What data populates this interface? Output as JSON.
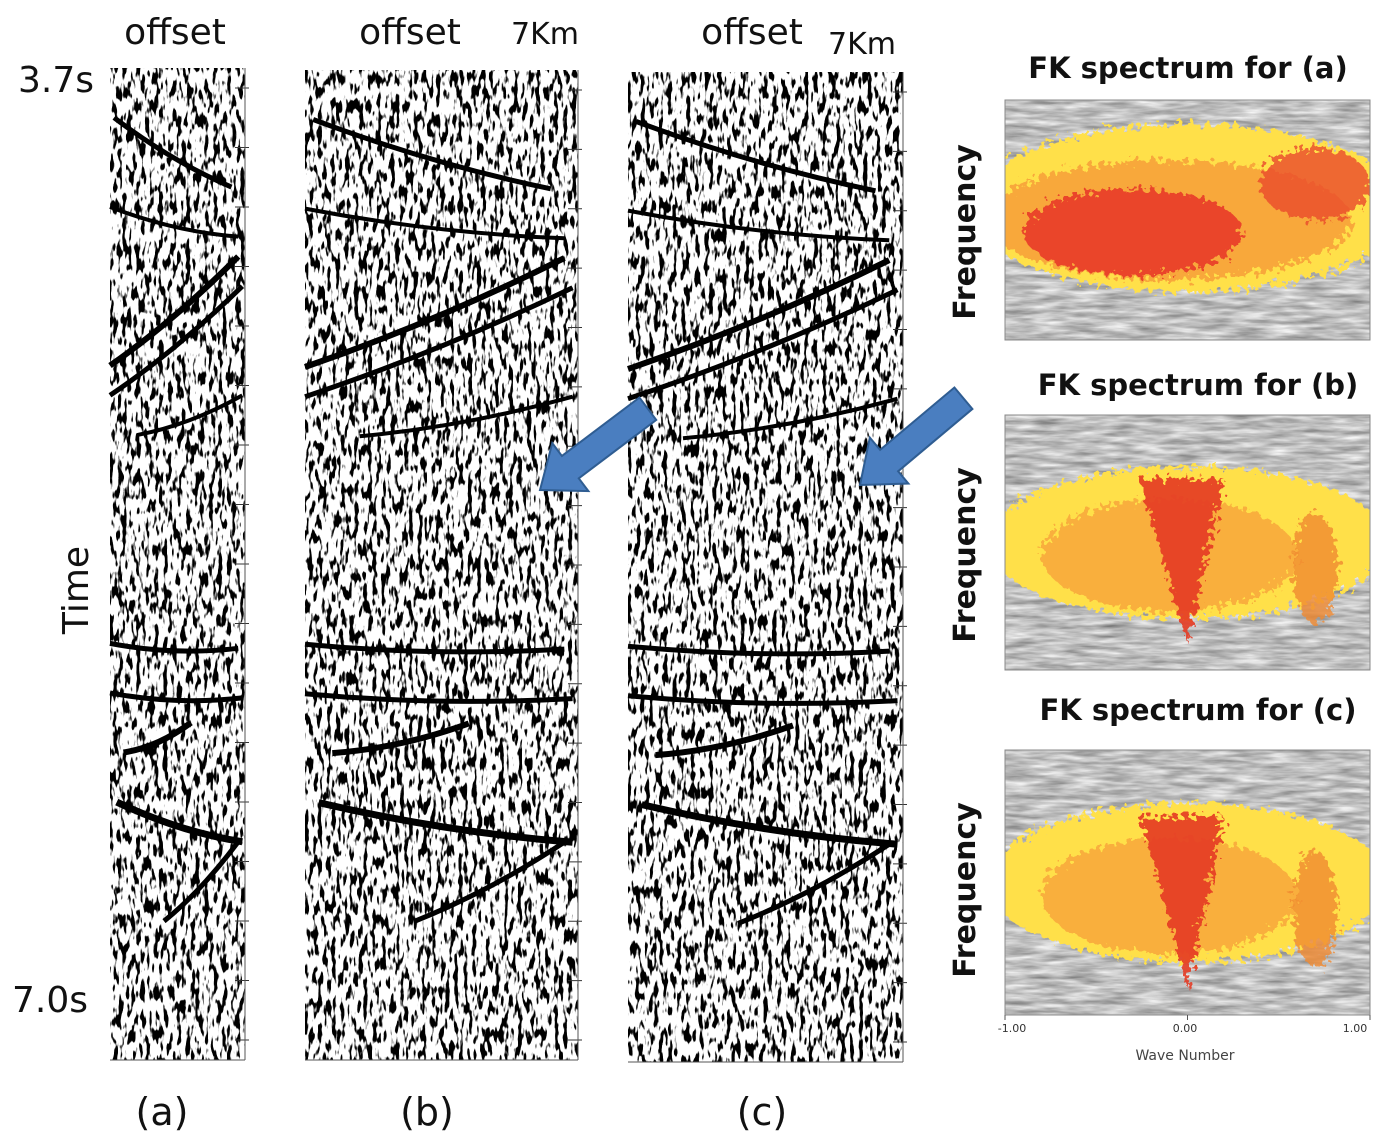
{
  "panels": [
    {
      "offset_label": "offset",
      "caption": "(a)",
      "time_start": "3.7s",
      "time_end": "7.0s",
      "time_axis": "Time"
    },
    {
      "offset_label": "offset",
      "distance": "7Km",
      "caption": "(b)"
    },
    {
      "offset_label": "offset",
      "distance": "7Km",
      "caption": "(c)"
    }
  ],
  "spectra": [
    {
      "title": "FK spectrum for  (a)",
      "y_label": "Frequency"
    },
    {
      "title": "FK spectrum for  (b)",
      "y_label": "Frequency"
    },
    {
      "title": "FK spectrum for  (c)",
      "y_label": "Frequency"
    }
  ],
  "spectrum_axis": {
    "ticks": [
      "-1.00",
      "0.00",
      "1.00"
    ],
    "label": "Wave Number"
  }
}
